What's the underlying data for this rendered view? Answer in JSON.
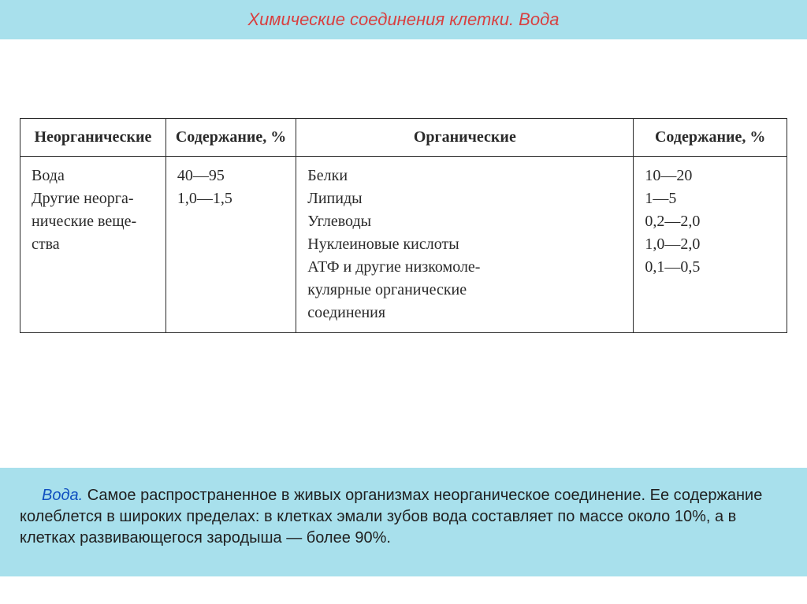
{
  "title": "Химические соединения клетки. Вода",
  "table": {
    "headers": [
      "Неорганические",
      "Содержание, %",
      "Органические",
      "Содержание, %"
    ],
    "col_widths": [
      "19%",
      "17%",
      "44%",
      "20%"
    ],
    "row": {
      "inorganic": "Вода\nДругие неорга-\nнические веще-\nства",
      "inorganic_pct": "40—95\n1,0—1,5",
      "organic": "Белки\nЛипиды\nУглеводы\nНуклеиновые кислоты\nАТФ и другие низкомоле-\nкулярные органические\nсоединения",
      "organic_pct": "10—20\n1—5\n0,2—2,0\n1,0—2,0\n0,1—0,5"
    },
    "border_color": "#2a2a2a",
    "font_family": "Georgia",
    "font_size_pt": 15
  },
  "footer": {
    "lead": "Вода.",
    "body": " Самое распространенное в живых организмах неорганическое соединение. Ее содержание колеблется в широких пределах: в клетках эмали зубов вода составляет по массе около 10%, а в клетках развивающегося зародыша — более 90%."
  },
  "colors": {
    "panel_bg": "#a8e0ec",
    "title_text": "#d84040",
    "body_text": "#202020",
    "lead_text": "#1050c0",
    "page_bg": "#ffffff"
  }
}
